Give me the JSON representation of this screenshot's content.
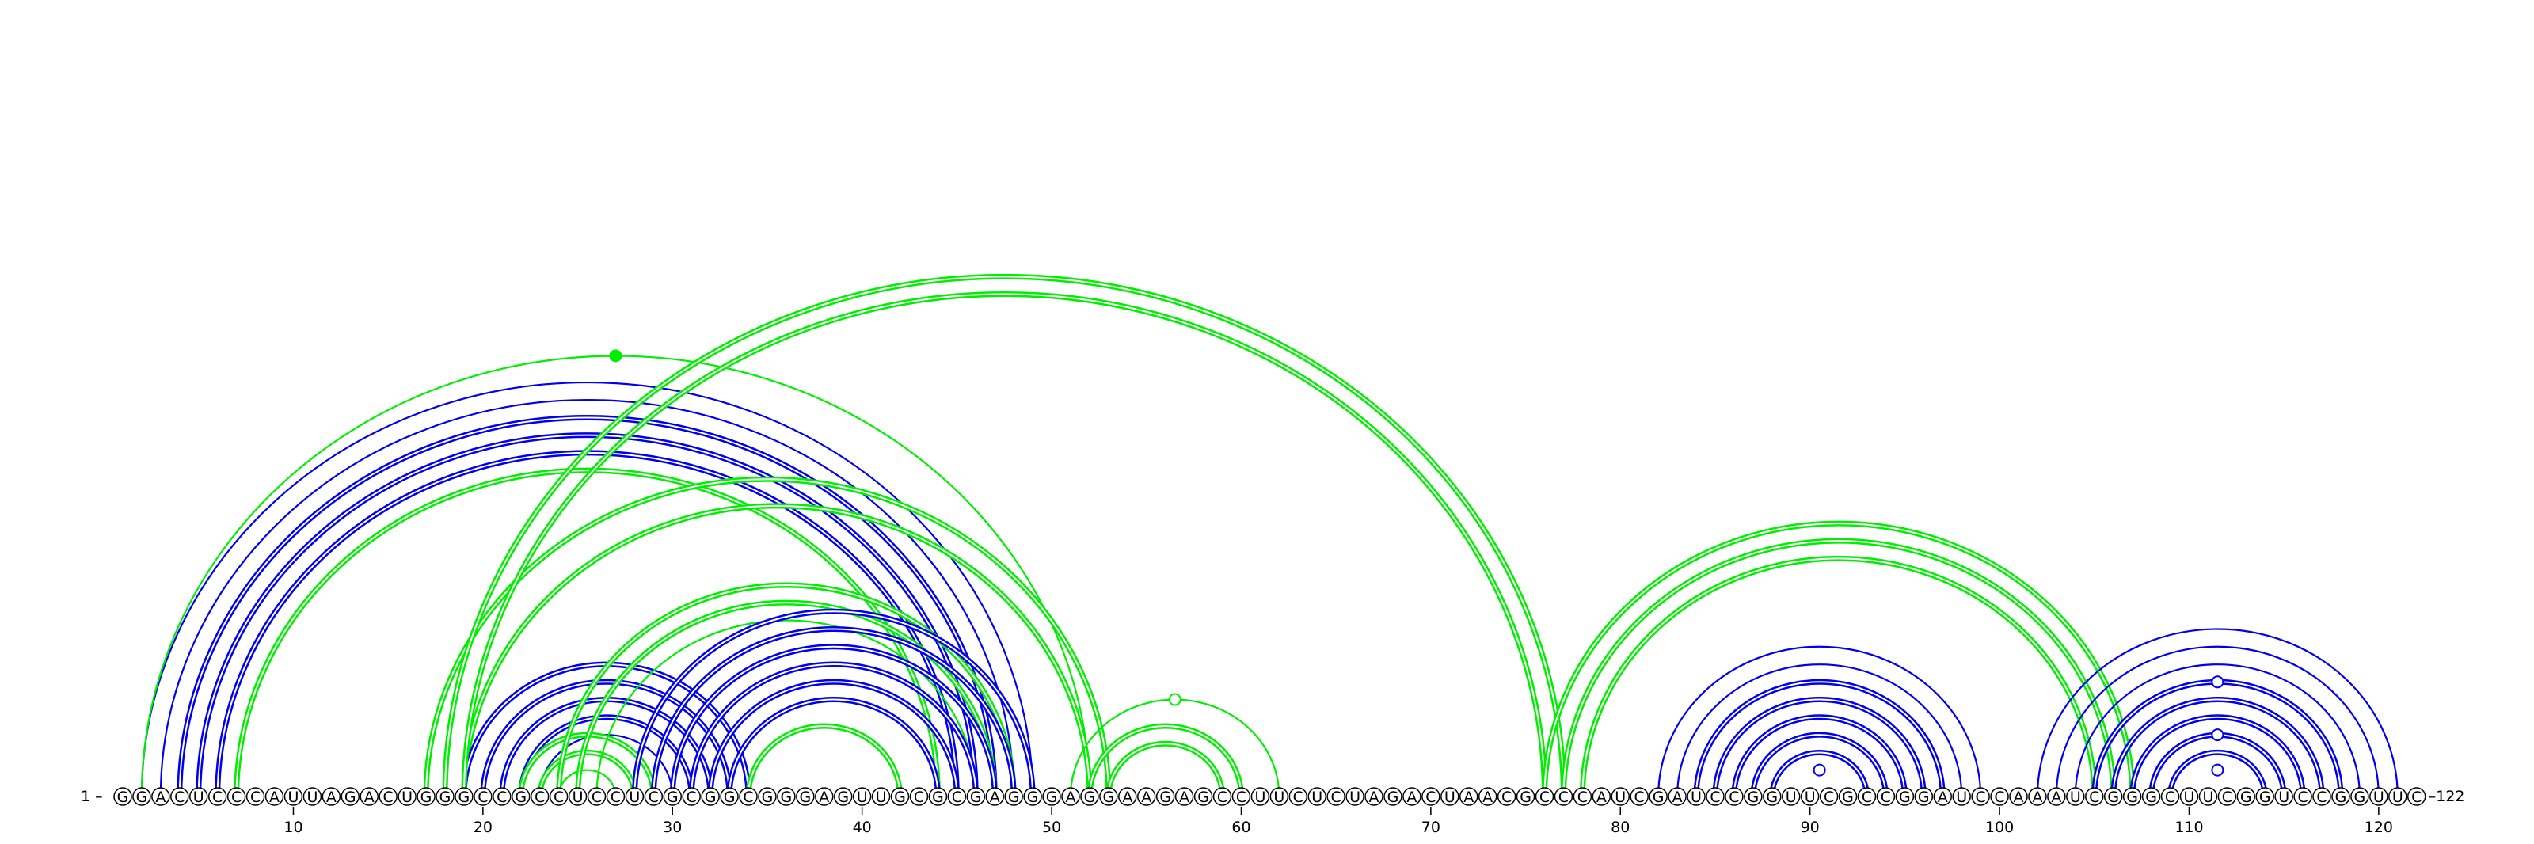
{
  "diagram": {
    "sequence": "GGACUCCCAUUAGACUGGGCCGCCUCCUCGCGGCGGGAGUUGCGCGAGGGAGGAAGAGCCUUCUCUAGACUAACGCCCAUCGAUCCGGUUCGCCGGAUCCAAAUCGGGCUUCGGUCCGGUUC",
    "start_label": "1 –",
    "end_label": "–122",
    "ticks": [
      10,
      20,
      30,
      40,
      50,
      60,
      70,
      80,
      90,
      100,
      110,
      120
    ],
    "colors": {
      "structure_a": "#0000ee",
      "structure_b": "#00ee00"
    },
    "arcs": [
      {
        "i": 2,
        "j": 49,
        "color": "blue",
        "double": false
      },
      {
        "i": 3,
        "j": 48,
        "color": "blue",
        "double": false
      },
      {
        "i": 4,
        "j": 47,
        "color": "blue",
        "double": true
      },
      {
        "i": 5,
        "j": 46,
        "color": "blue",
        "double": true
      },
      {
        "i": 6,
        "j": 45,
        "color": "blue",
        "double": true
      },
      {
        "i": 2,
        "j": 52,
        "color": "green",
        "double": false
      },
      {
        "i": 7,
        "j": 44,
        "color": "green",
        "double": true
      },
      {
        "i": 17,
        "j": 53,
        "color": "green",
        "double": true
      },
      {
        "i": 19,
        "j": 52,
        "color": "green",
        "double": true
      },
      {
        "i": 19,
        "j": 34,
        "color": "blue",
        "double": true
      },
      {
        "i": 20,
        "j": 33,
        "color": "blue",
        "double": true
      },
      {
        "i": 21,
        "j": 32,
        "color": "blue",
        "double": true
      },
      {
        "i": 22,
        "j": 31,
        "color": "blue",
        "double": true
      },
      {
        "i": 23,
        "j": 30,
        "color": "blue",
        "double": false
      },
      {
        "i": 22,
        "j": 29,
        "color": "green",
        "double": true
      },
      {
        "i": 23,
        "j": 28,
        "color": "green",
        "double": true
      },
      {
        "i": 24,
        "j": 27,
        "color": "green",
        "double": false
      },
      {
        "i": 24,
        "j": 48,
        "color": "green",
        "double": true
      },
      {
        "i": 25,
        "j": 47,
        "color": "green",
        "double": true
      },
      {
        "i": 26,
        "j": 46,
        "color": "green",
        "double": false
      },
      {
        "i": 28,
        "j": 49,
        "color": "blue",
        "double": true
      },
      {
        "i": 29,
        "j": 48,
        "color": "blue",
        "double": true
      },
      {
        "i": 30,
        "j": 47,
        "color": "blue",
        "double": true
      },
      {
        "i": 31,
        "j": 46,
        "color": "blue",
        "double": true
      },
      {
        "i": 32,
        "j": 45,
        "color": "blue",
        "double": true
      },
      {
        "i": 33,
        "j": 44,
        "color": "blue",
        "double": true
      },
      {
        "i": 34,
        "j": 42,
        "color": "green",
        "double": true
      },
      {
        "i": 51,
        "j": 62,
        "color": "green",
        "double": false
      },
      {
        "i": 52,
        "j": 60,
        "color": "green",
        "double": true
      },
      {
        "i": 53,
        "j": 59,
        "color": "green",
        "double": true
      },
      {
        "i": 18,
        "j": 77,
        "color": "green",
        "double": true
      },
      {
        "i": 19,
        "j": 76,
        "color": "green",
        "double": true
      },
      {
        "i": 76,
        "j": 107,
        "color": "green",
        "double": true
      },
      {
        "i": 77,
        "j": 106,
        "color": "green",
        "double": true
      },
      {
        "i": 78,
        "j": 105,
        "color": "green",
        "double": true
      },
      {
        "i": 82,
        "j": 99,
        "color": "blue",
        "double": false
      },
      {
        "i": 83,
        "j": 98,
        "color": "blue",
        "double": false
      },
      {
        "i": 84,
        "j": 97,
        "color": "blue",
        "double": true
      },
      {
        "i": 85,
        "j": 96,
        "color": "blue",
        "double": true
      },
      {
        "i": 86,
        "j": 95,
        "color": "blue",
        "double": true
      },
      {
        "i": 87,
        "j": 94,
        "color": "blue",
        "double": true
      },
      {
        "i": 88,
        "j": 93,
        "color": "blue",
        "double": true
      },
      {
        "i": 102,
        "j": 121,
        "color": "blue",
        "double": false
      },
      {
        "i": 103,
        "j": 120,
        "color": "blue",
        "double": false
      },
      {
        "i": 104,
        "j": 119,
        "color": "blue",
        "double": false
      },
      {
        "i": 105,
        "j": 118,
        "color": "blue",
        "double": true
      },
      {
        "i": 106,
        "j": 117,
        "color": "blue",
        "double": true
      },
      {
        "i": 107,
        "j": 116,
        "color": "blue",
        "double": true
      },
      {
        "i": 108,
        "j": 115,
        "color": "blue",
        "double": true
      },
      {
        "i": 109,
        "j": 114,
        "color": "blue",
        "double": true
      }
    ],
    "markers": [
      {
        "i": 2,
        "j": 52,
        "color": "green",
        "filled": true
      },
      {
        "i": 51,
        "j": 62,
        "color": "green",
        "filled": false
      },
      {
        "i": 89,
        "j": 92,
        "color": "blue",
        "filled": false
      },
      {
        "i": 110,
        "j": 113,
        "color": "blue",
        "filled": false
      },
      {
        "i": 108,
        "j": 115,
        "color": "blue",
        "filled": false
      },
      {
        "i": 105,
        "j": 118,
        "color": "blue",
        "filled": false
      }
    ]
  }
}
